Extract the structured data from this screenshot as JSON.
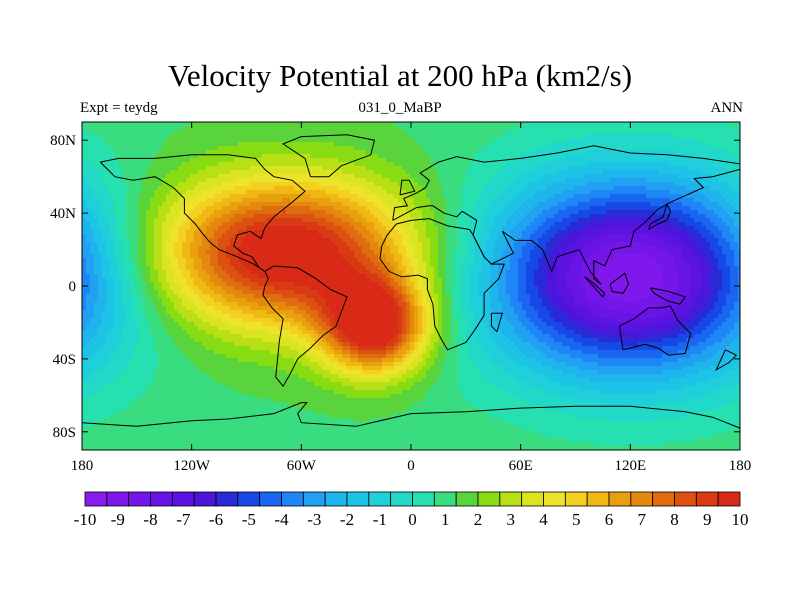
{
  "chart_data": {
    "type": "heatmap",
    "title": "Velocity Potential at 200 hPa (km2/s)",
    "left_subtitle": "Expt = teydg",
    "center_subtitle": "031_0_MaBP",
    "right_subtitle": "ANN",
    "x_tick_labels": [
      "180",
      "120W",
      "60W",
      "0",
      "60E",
      "120E",
      "180"
    ],
    "x_tick_values": [
      -180,
      -120,
      -60,
      0,
      60,
      120,
      180
    ],
    "y_tick_labels": [
      "80N",
      "40N",
      "0",
      "40S",
      "80S"
    ],
    "y_tick_values": [
      80,
      40,
      0,
      -40,
      -80
    ],
    "xlim": [
      -180,
      180
    ],
    "ylim": [
      -90,
      90
    ],
    "field_features": [
      {
        "name": "maximum",
        "lon": -70,
        "lat": 18,
        "value": 9.5,
        "sx": 50,
        "sy": 28
      },
      {
        "name": "secondary maximum",
        "lon": -20,
        "lat": -22,
        "value": 9.0,
        "sx": 20,
        "sy": 18
      },
      {
        "name": "minimum",
        "lon": 120,
        "lat": 5,
        "value": -10.5,
        "sx": 55,
        "sy": 38
      }
    ],
    "colorbar": {
      "labels": [
        "-10",
        "-9",
        "-8",
        "-7",
        "-6",
        "-5",
        "-4",
        "-3",
        "-2",
        "-1",
        "0",
        "1",
        "2",
        "3",
        "4",
        "5",
        "6",
        "7",
        "8",
        "9",
        "10"
      ],
      "levels": [
        -10,
        -9,
        -8,
        -7,
        -6,
        -5,
        -4,
        -3,
        -2,
        -1,
        0,
        1,
        2,
        3,
        4,
        5,
        6,
        7,
        8,
        9,
        10
      ],
      "colors": [
        "#8a1cf0",
        "#8018ee",
        "#7416ea",
        "#6914e6",
        "#5c12e0",
        "#4a16dc",
        "#2a2ad6",
        "#1648e6",
        "#1a66f0",
        "#1e86f6",
        "#22a0f2",
        "#1eb4ec",
        "#1ec4e6",
        "#1fd0da",
        "#22d8c8",
        "#26e0b0",
        "#3adc80",
        "#5ad43c",
        "#88dc14",
        "#b8e014",
        "#dae420",
        "#ece42a",
        "#f4d020",
        "#f0b814",
        "#e8a00e",
        "#e4880e",
        "#e06c10",
        "#dc5012",
        "#d83a14",
        "#d82a16"
      ]
    }
  }
}
